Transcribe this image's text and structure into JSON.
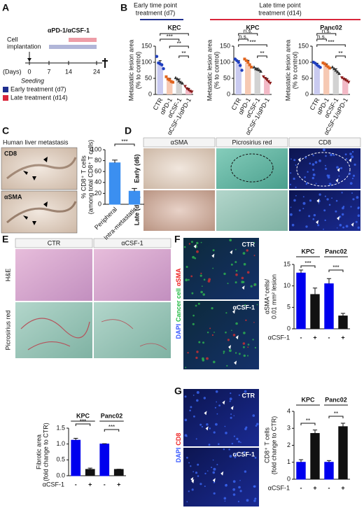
{
  "panels": {
    "A": {
      "letter": "A",
      "treatment": "αPD-1/αCSF-1",
      "implantation": [
        "Cell",
        "implantation"
      ],
      "days_label": "(Days)",
      "days": [
        0,
        7,
        14,
        24
      ],
      "seeding": "Seeding",
      "legend": [
        {
          "name": "Early treatment (d7)",
          "color": "#1f2f8f"
        },
        {
          "name": "Late treatment (d14)",
          "color": "#d9263b"
        }
      ]
    },
    "B": {
      "letter": "B",
      "early": [
        "Early time point",
        "treatment (d7)"
      ],
      "late": [
        "Late time point",
        "treatment (d14)"
      ]
    },
    "C": {
      "letter": "C",
      "title": "Human liver metastasis",
      "images": [
        "CD8",
        "αSMA"
      ]
    },
    "D": {
      "letter": "D",
      "columns": [
        "αSMA",
        "Picrosirius red",
        "CD8"
      ],
      "rows": [
        "Early (d6)",
        "Late (d14)"
      ]
    },
    "E": {
      "letter": "E",
      "columns": [
        "CTR",
        "αCSF-1"
      ],
      "rows": [
        "H&E",
        "Picrosirius red"
      ]
    },
    "F": {
      "letter": "F",
      "stain": [
        "DAPI",
        "Cancer cell",
        "αSMA"
      ],
      "images": [
        "CTR",
        "αCSF-1"
      ]
    },
    "G": {
      "letter": "G",
      "stain": [
        "DAPI",
        "CD8"
      ],
      "images": [
        "CTR",
        "αCSF-1"
      ]
    }
  },
  "chart_data": [
    {
      "type": "bar",
      "title": "KPC",
      "ylabel": [
        "Metastatic lesion area",
        "(% to control)"
      ],
      "categories": [
        "CTR",
        "αPD-1",
        "αCSF-1",
        "αCSF-1/αPD-1"
      ],
      "values": [
        97,
        45,
        43,
        15
      ],
      "errors": [
        8,
        5,
        5,
        4
      ],
      "points": [
        [
          118,
          98,
          95,
          92,
          80
        ],
        [
          55,
          48,
          45,
          40,
          38
        ],
        [
          52,
          48,
          42,
          38,
          35
        ],
        [
          25,
          18,
          14,
          10,
          8
        ]
      ],
      "colors": [
        "#c9caf0",
        "#f6c9b3",
        "#d2d2d2",
        "#f2b9c6"
      ],
      "point_colors": [
        "#1f3fbf",
        "#e0641e",
        "#333333",
        "#8b1a1a"
      ],
      "ylim": [
        0,
        150
      ],
      "yticks": [
        0,
        50,
        100,
        150
      ],
      "annotations": [
        "**",
        "***",
        "**",
        "**"
      ]
    },
    {
      "type": "bar",
      "title": "KPC",
      "ylabel": [
        "Metastatic lesion area",
        "(% to control)"
      ],
      "categories": [
        "CTR",
        "αPD-1",
        "αCSF-1",
        "αCSF-1/αPD-1"
      ],
      "values": [
        98,
        98,
        78,
        45
      ],
      "errors": [
        7,
        8,
        4,
        5
      ],
      "points": [
        [
          110,
          105,
          100,
          90,
          75
        ],
        [
          110,
          105,
          100,
          92,
          85
        ],
        [
          85,
          80,
          78,
          76,
          72
        ],
        [
          55,
          50,
          45,
          40,
          35
        ]
      ],
      "colors": [
        "#c9caf0",
        "#f6c9b3",
        "#d2d2d2",
        "#f2b9c6"
      ],
      "point_colors": [
        "#1f3fbf",
        "#e0641e",
        "#333333",
        "#8b1a1a"
      ],
      "ylim": [
        0,
        150
      ],
      "yticks": [
        0,
        50,
        100,
        150
      ],
      "annotations": [
        "n.s.",
        "n.s.",
        "***",
        "**"
      ]
    },
    {
      "type": "bar",
      "title": "Panc02",
      "ylabel": [
        "Metastatic lesion area",
        "(% to control)"
      ],
      "categories": [
        "CTR",
        "αPD-1",
        "αCSF-1",
        "αCSF-1/αPD-1"
      ],
      "values": [
        92,
        90,
        75,
        45
      ],
      "errors": [
        5,
        5,
        5,
        4
      ],
      "points": [
        [
          100,
          97,
          92,
          88,
          84
        ],
        [
          98,
          95,
          90,
          86,
          82
        ],
        [
          85,
          80,
          75,
          70,
          65
        ],
        [
          52,
          48,
          45,
          42,
          38
        ]
      ],
      "colors": [
        "#c9caf0",
        "#f6c9b3",
        "#d2d2d2",
        "#f2b9c6"
      ],
      "point_colors": [
        "#1f3fbf",
        "#e0641e",
        "#333333",
        "#8b1a1a"
      ],
      "ylim": [
        0,
        150
      ],
      "yticks": [
        0,
        50,
        100,
        150
      ],
      "annotations": [
        "n.s.",
        "n.s.",
        "***",
        "**"
      ]
    },
    {
      "type": "bar",
      "ylabel": [
        "% CD8⁺ T cells",
        "(among total CD8⁺ T cells)"
      ],
      "categories": [
        "Peripheral",
        "Intra-metastatic"
      ],
      "values": [
        76,
        24
      ],
      "errors": [
        5,
        5
      ],
      "colors": [
        "#3b8ff0",
        "#3b8ff0"
      ],
      "ylim": [
        0,
        100
      ],
      "yticks": [
        0,
        20,
        40,
        60,
        80,
        100
      ],
      "annotations": [
        "***"
      ]
    },
    {
      "type": "bar",
      "ylabel": [
        "Fibrotic area",
        "(fold change to CTR)"
      ],
      "groups": [
        "KPC",
        "Panc02"
      ],
      "row_label": "αCSF-1",
      "categories": [
        "-",
        "+",
        "-",
        "+"
      ],
      "values": [
        1.12,
        0.2,
        1.0,
        0.2
      ],
      "errors": [
        0.06,
        0.04,
        0.01,
        0.005
      ],
      "colors": [
        "#0000ee",
        "#111111",
        "#0000ee",
        "#111111"
      ],
      "ylim": [
        0,
        1.5
      ],
      "yticks": [
        {
          "value": 0,
          "label": "0.0"
        },
        {
          "value": 0.5,
          "label": "0.5"
        },
        {
          "value": 1,
          "label": "1.0"
        },
        {
          "value": 1.5,
          "label": "1.5"
        }
      ],
      "annotations": [
        "***",
        "***"
      ]
    },
    {
      "type": "bar",
      "ylabel": [
        "αSMA⁺cells/",
        "0.01 mm² lesion"
      ],
      "groups": [
        "KPC",
        "Panc02"
      ],
      "row_label": "αCSF-1",
      "categories": [
        "-",
        "+",
        "-",
        "+"
      ],
      "values": [
        13,
        8,
        10.5,
        3
      ],
      "errors": [
        0.7,
        1.5,
        1.2,
        0.6
      ],
      "colors": [
        "#0000ee",
        "#111111",
        "#0000ee",
        "#111111"
      ],
      "ylim": [
        0,
        15
      ],
      "yticks": [
        0,
        5,
        10,
        15
      ],
      "annotations": [
        "***",
        "***"
      ]
    },
    {
      "type": "bar",
      "ylabel": [
        "CD8⁺ T cells",
        "(fold change to CTR)"
      ],
      "groups": [
        "KPC",
        "Panc02"
      ],
      "row_label": "αCSF-1",
      "categories": [
        "-",
        "+",
        "-",
        "+"
      ],
      "values": [
        1,
        2.7,
        1,
        3.1
      ],
      "errors": [
        0.15,
        0.2,
        0.1,
        0.2
      ],
      "colors": [
        "#0000ee",
        "#111111",
        "#0000ee",
        "#111111"
      ],
      "ylim": [
        0,
        4
      ],
      "yticks": [
        0,
        1,
        2,
        3,
        4
      ],
      "annotations": [
        "**",
        "**"
      ]
    }
  ]
}
